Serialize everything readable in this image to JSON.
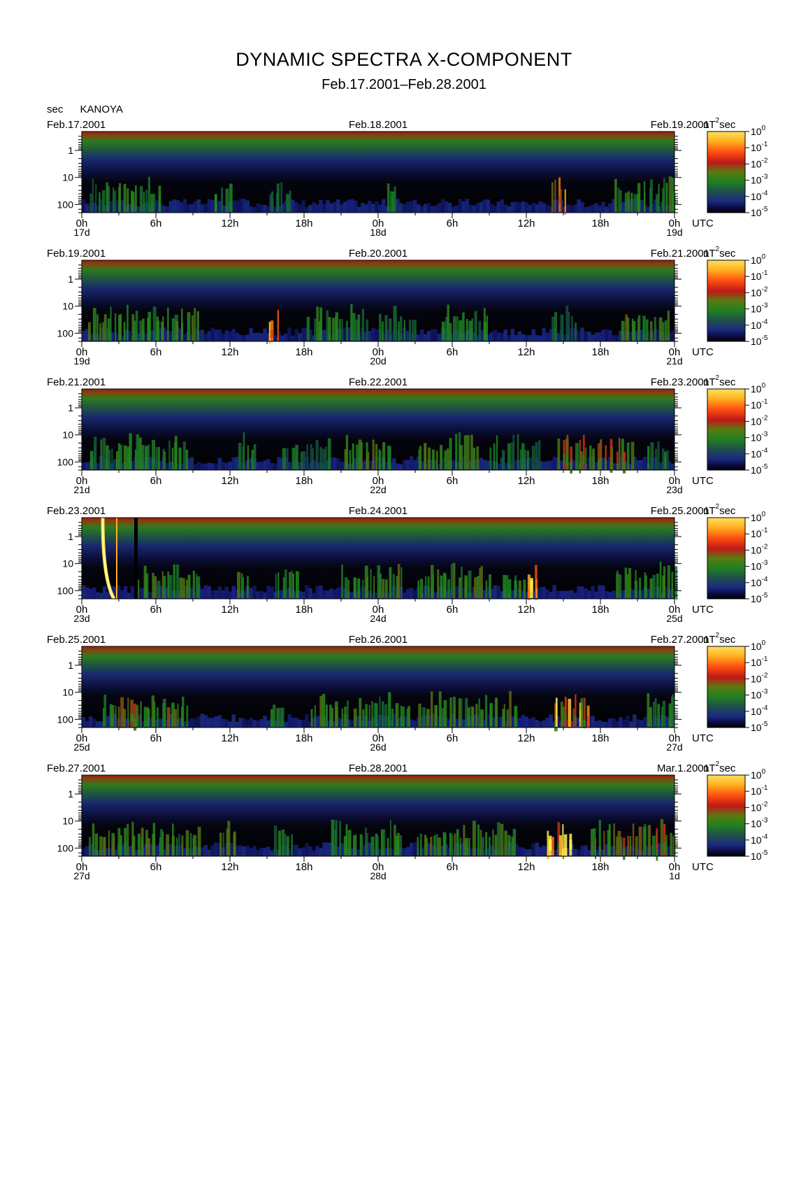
{
  "title": "DYNAMIC SPECTRA X-COMPONENT",
  "subtitle": "Feb.17.2001–Feb.28.2001",
  "header": {
    "y_unit": "sec",
    "station": "KANOYA"
  },
  "colorbar": {
    "unit_main": "nT",
    "unit_exp": "2",
    "unit_tail": "sec",
    "ticks": [
      {
        "base": "10",
        "exp": "0"
      },
      {
        "base": "10",
        "exp": "-1"
      },
      {
        "base": "10",
        "exp": "-2"
      },
      {
        "base": "10",
        "exp": "-3"
      },
      {
        "base": "10",
        "exp": "-4"
      },
      {
        "base": "10",
        "exp": "-5"
      }
    ]
  },
  "time_unit_label": "UTC",
  "hour_labels": [
    "0h",
    "6h",
    "12h",
    "18h",
    "0h",
    "6h",
    "12h",
    "18h",
    "0h"
  ],
  "chart_data": {
    "type": "heatmap",
    "variable": "dynamic spectra X-component power",
    "y_axis": {
      "label": "sec",
      "scale": "log",
      "ticks": [
        "1",
        "10",
        "100"
      ],
      "inverted": true
    },
    "color_scale": {
      "unit": "nT^2 sec",
      "min": 1e-05,
      "max": 1,
      "scale": "log"
    },
    "panels": [
      {
        "start_label": "Feb.17.2001",
        "mid_label": "Feb.18.2001",
        "end_label": "Feb.19.2001",
        "day_labels": [
          "17d",
          "18d",
          "19d"
        ],
        "seed": 17,
        "events": [
          [
            0.5,
            6,
            0.35
          ],
          [
            10.5,
            1.5,
            0.3
          ],
          [
            15,
            2,
            0.25
          ],
          [
            24.5,
            1,
            0.3
          ],
          [
            38,
            1.2,
            0.8
          ],
          [
            43,
            5,
            0.4
          ],
          [
            47.5,
            0.8,
            0.45
          ]
        ]
      },
      {
        "start_label": "Feb.19.2001",
        "mid_label": "Feb.20.2001",
        "end_label": "Feb.21.2001",
        "day_labels": [
          "19d",
          "20d",
          "21d"
        ],
        "seed": 19,
        "events": [
          [
            0.5,
            9,
            0.45
          ],
          [
            15,
            0.8,
            1.0
          ],
          [
            18,
            5,
            0.35
          ],
          [
            24,
            3,
            0.3
          ],
          [
            29,
            4,
            0.35
          ],
          [
            38,
            2,
            0.25
          ],
          [
            43.5,
            4,
            0.5
          ]
        ]
      },
      {
        "start_label": "Feb.21.2001",
        "mid_label": "Feb.22.2001",
        "end_label": "Feb.23.2001",
        "day_labels": [
          "21d",
          "22d",
          "23d"
        ],
        "seed": 21,
        "events": [
          [
            0.5,
            8,
            0.35
          ],
          [
            12.5,
            1.5,
            0.4
          ],
          [
            16,
            4,
            0.25
          ],
          [
            21,
            4,
            0.45
          ],
          [
            27,
            5,
            0.45
          ],
          [
            33,
            4,
            0.3
          ],
          [
            38.5,
            6,
            0.55
          ],
          [
            45.5,
            2,
            0.3
          ]
        ]
      },
      {
        "start_label": "Feb.23.2001",
        "mid_label": "Feb.24.2001",
        "end_label": "Feb.25.2001",
        "day_labels": [
          "23d",
          "24d",
          "25d"
        ],
        "seed": 23,
        "events": [
          [
            4.5,
            5,
            0.45
          ],
          [
            12.5,
            1,
            0.4
          ],
          [
            15.5,
            2,
            0.35
          ],
          [
            21,
            5,
            0.45
          ],
          [
            27,
            6,
            0.45
          ],
          [
            34,
            2,
            0.4
          ],
          [
            36,
            1,
            0.8
          ],
          [
            43,
            5,
            0.4
          ]
        ]
      },
      {
        "start_label": "Feb.25.2001",
        "mid_label": "Feb.26.2001",
        "end_label": "Feb.27.2001",
        "day_labels": [
          "25d",
          "26d",
          "27d"
        ],
        "seed": 25,
        "events": [
          [
            1.5,
            7,
            0.5
          ],
          [
            15,
            1.5,
            0.4
          ],
          [
            18.5,
            3,
            0.5
          ],
          [
            22,
            4.5,
            0.4
          ],
          [
            27,
            8,
            0.45
          ],
          [
            38,
            3,
            0.85
          ],
          [
            45.5,
            2.5,
            0.4
          ]
        ]
      },
      {
        "start_label": "Feb.27.2001",
        "mid_label": "Feb.28.2001",
        "end_label": "Mar.1.2001",
        "day_labels": [
          "27d",
          "28d",
          "1d"
        ],
        "seed": 27,
        "events": [
          [
            0.5,
            9,
            0.45
          ],
          [
            11,
            1.5,
            0.45
          ],
          [
            15.5,
            1.5,
            0.35
          ],
          [
            20,
            6,
            0.35
          ],
          [
            27,
            8,
            0.45
          ],
          [
            37.5,
            2,
            1.0
          ],
          [
            41,
            7,
            0.55
          ]
        ]
      }
    ]
  }
}
